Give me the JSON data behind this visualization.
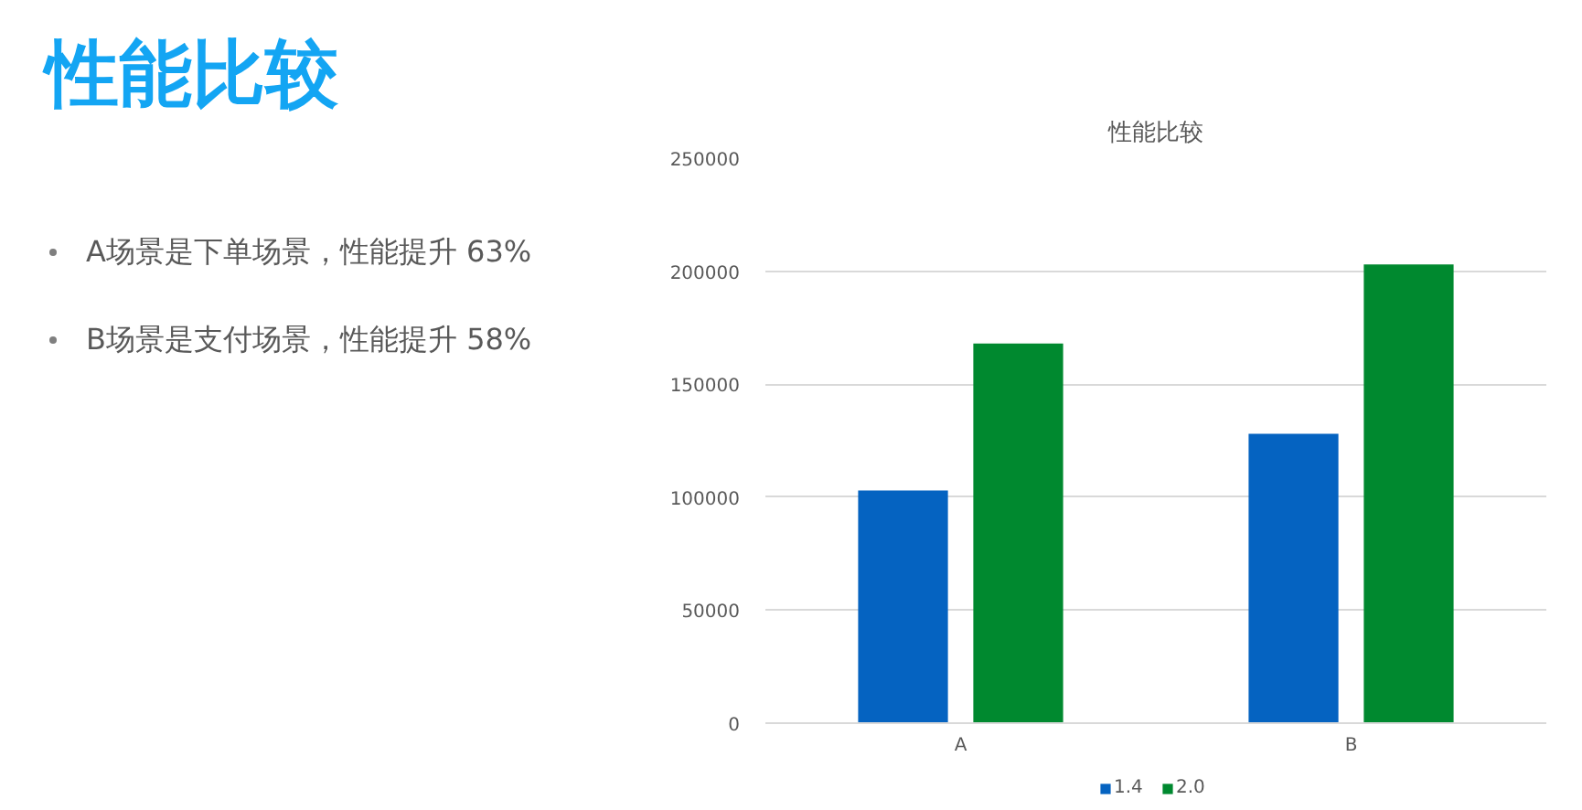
{
  "chart_data": {
    "type": "bar",
    "title": "性能比较",
    "categories": [
      "A",
      "B"
    ],
    "series": [
      {
        "name": "1.4",
        "color": "#0563c1",
        "values": [
          103000,
          128000
        ]
      },
      {
        "name": "2.0",
        "color": "#00892f",
        "values": [
          168000,
          203000
        ]
      }
    ],
    "ylim": [
      0,
      250000
    ],
    "yticks": [
      0,
      50000,
      100000,
      150000,
      200000,
      250000
    ],
    "grid": "y",
    "legend": "bottom",
    "annotations": [
      "性能比较",
      "A场景是下单场景，性能提升 63%",
      "B场景是支付场景，性能提升 58%"
    ]
  }
}
